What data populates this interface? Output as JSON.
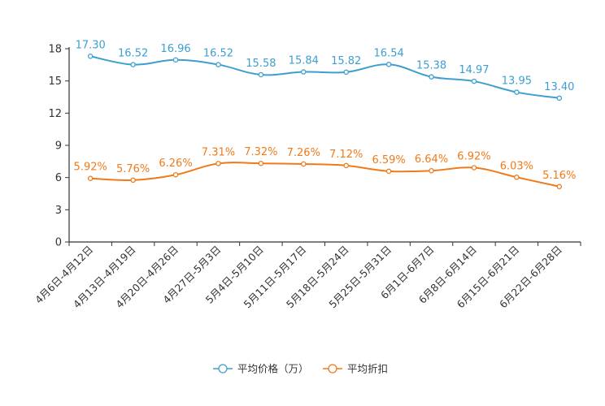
{
  "chart_data": {
    "type": "line",
    "categories": [
      "4月6日-4月12日",
      "4月13日-4月19日",
      "4月20日-4月26日",
      "4月27日-5月3日",
      "5月4日-5月10日",
      "5月11日-5月17日",
      "5月18日-5月24日",
      "5月25日-5月31日",
      "6月1日-6月7日",
      "6月8日-6月14日",
      "6月15日-6月21日",
      "6月22日-6月28日"
    ],
    "series": [
      {
        "name": "平均价格（万）",
        "color": "#3d9fcf",
        "values": [
          17.3,
          16.52,
          16.96,
          16.52,
          15.58,
          15.84,
          15.82,
          16.54,
          15.38,
          14.97,
          13.95,
          13.4
        ],
        "labels": [
          "17.30",
          "16.52",
          "16.96",
          "16.52",
          "15.58",
          "15.84",
          "15.82",
          "16.54",
          "15.38",
          "14.97",
          "13.95",
          "13.40"
        ]
      },
      {
        "name": "平均折扣",
        "color": "#f07a1a",
        "values": [
          5.92,
          5.76,
          6.26,
          7.31,
          7.32,
          7.26,
          7.12,
          6.59,
          6.64,
          6.92,
          6.03,
          5.16
        ],
        "labels": [
          "5.92%",
          "5.76%",
          "6.26%",
          "7.31%",
          "7.32%",
          "7.26%",
          "7.12%",
          "6.59%",
          "6.64%",
          "6.92%",
          "6.03%",
          "5.16%"
        ]
      }
    ],
    "y_ticks": [
      "0",
      "3",
      "6",
      "9",
      "12",
      "15",
      "18"
    ],
    "ylim": [
      0,
      18
    ],
    "title": "",
    "xlabel": "",
    "ylabel": "",
    "grid": false,
    "legend_position": "bottom-center"
  }
}
